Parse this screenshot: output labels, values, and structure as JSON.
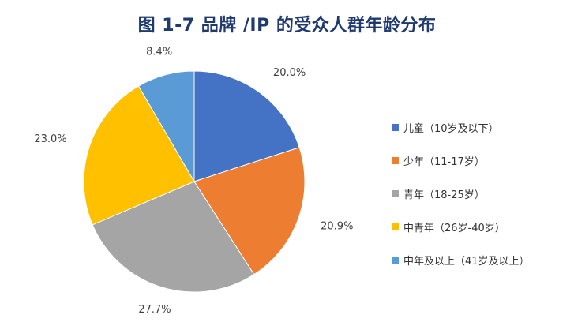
{
  "chart_data": {
    "type": "pie",
    "title": "图 1-7 品牌 /IP 的受众人群年龄分布",
    "legend_position": "right",
    "slices": [
      {
        "label": "儿童（10岁及以下）",
        "value": 20.0,
        "value_label": "20.0%",
        "color": "#4472c4"
      },
      {
        "label": "少年（11-17岁）",
        "value": 20.9,
        "value_label": "20.9%",
        "color": "#ed7d31"
      },
      {
        "label": "青年（18-25岁）",
        "value": 27.7,
        "value_label": "27.7%",
        "color": "#a5a5a5"
      },
      {
        "label": "中青年（26岁-40岁）",
        "value": 23.0,
        "value_label": "23.0%",
        "color": "#ffc000"
      },
      {
        "label": "中年及以上（41岁及以上）",
        "value": 8.4,
        "value_label": "8.4%",
        "color": "#5b9bd5"
      }
    ]
  }
}
